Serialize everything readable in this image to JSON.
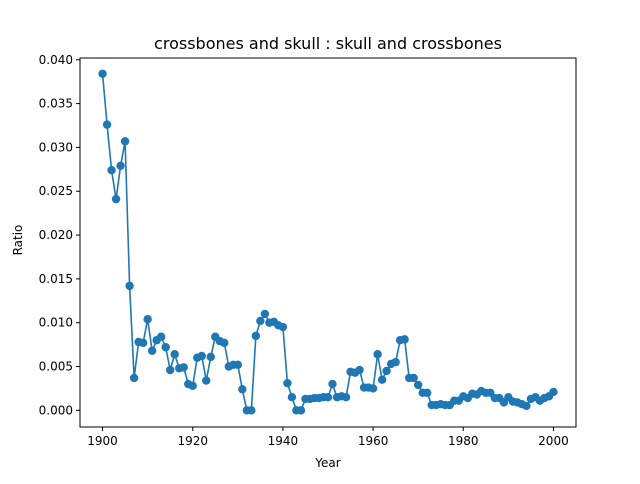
{
  "chart_data": {
    "type": "line",
    "title": "crossbones and skull : skull and crossbones",
    "xlabel": "Year",
    "ylabel": "Ratio",
    "xlim": [
      1895,
      2005
    ],
    "ylim": [
      -0.0019,
      0.0402
    ],
    "xticks": [
      1900,
      1920,
      1940,
      1960,
      1980,
      2000
    ],
    "xtick_labels": [
      "1900",
      "1920",
      "1940",
      "1960",
      "1980",
      "2000"
    ],
    "yticks": [
      0.0,
      0.005,
      0.01,
      0.015,
      0.02,
      0.025,
      0.03,
      0.035,
      0.04
    ],
    "ytick_labels": [
      "0.000",
      "0.005",
      "0.010",
      "0.015",
      "0.020",
      "0.025",
      "0.030",
      "0.035",
      "0.040"
    ],
    "grid": false,
    "legend": "none",
    "color": "#1f77b4",
    "marker": "circle",
    "x": [
      1900,
      1901,
      1902,
      1903,
      1904,
      1905,
      1906,
      1907,
      1908,
      1909,
      1910,
      1911,
      1912,
      1913,
      1914,
      1915,
      1916,
      1917,
      1918,
      1919,
      1920,
      1921,
      1922,
      1923,
      1924,
      1925,
      1926,
      1927,
      1928,
      1929,
      1930,
      1931,
      1932,
      1933,
      1934,
      1935,
      1936,
      1937,
      1938,
      1939,
      1940,
      1941,
      1942,
      1943,
      1944,
      1945,
      1946,
      1947,
      1948,
      1949,
      1950,
      1951,
      1952,
      1953,
      1954,
      1955,
      1956,
      1957,
      1958,
      1959,
      1960,
      1961,
      1962,
      1963,
      1964,
      1965,
      1966,
      1967,
      1968,
      1969,
      1970,
      1971,
      1972,
      1973,
      1974,
      1975,
      1976,
      1977,
      1978,
      1979,
      1980,
      1981,
      1982,
      1983,
      1984,
      1985,
      1986,
      1987,
      1988,
      1989,
      1990,
      1991,
      1992,
      1993,
      1994,
      1995,
      1996,
      1997,
      1998,
      1999,
      2000
    ],
    "y": [
      0.0384,
      0.0326,
      0.0274,
      0.0241,
      0.0279,
      0.0307,
      0.0142,
      0.0037,
      0.0078,
      0.0077,
      0.0104,
      0.0068,
      0.008,
      0.0084,
      0.0072,
      0.0046,
      0.0064,
      0.0048,
      0.0049,
      0.003,
      0.0028,
      0.006,
      0.0062,
      0.0034,
      0.0061,
      0.0084,
      0.0079,
      0.0077,
      0.005,
      0.0052,
      0.0052,
      0.0024,
      0.0,
      0.0,
      0.0085,
      0.0102,
      0.011,
      0.01,
      0.0101,
      0.0097,
      0.0095,
      0.0031,
      0.0015,
      0.0,
      0.0,
      0.0013,
      0.0013,
      0.0014,
      0.0014,
      0.0015,
      0.0015,
      0.003,
      0.0015,
      0.0016,
      0.0015,
      0.0044,
      0.0043,
      0.0046,
      0.0026,
      0.0026,
      0.0025,
      0.0064,
      0.0035,
      0.0045,
      0.0053,
      0.0055,
      0.008,
      0.0081,
      0.0037,
      0.0037,
      0.0029,
      0.002,
      0.002,
      0.0006,
      0.0006,
      0.0007,
      0.0006,
      0.0006,
      0.0011,
      0.0011,
      0.0016,
      0.0014,
      0.0019,
      0.0018,
      0.0022,
      0.002,
      0.002,
      0.0014,
      0.0014,
      0.0009,
      0.0015,
      0.001,
      0.0009,
      0.0007,
      0.0005,
      0.0013,
      0.0015,
      0.0011,
      0.0014,
      0.0016,
      0.0021
    ]
  }
}
